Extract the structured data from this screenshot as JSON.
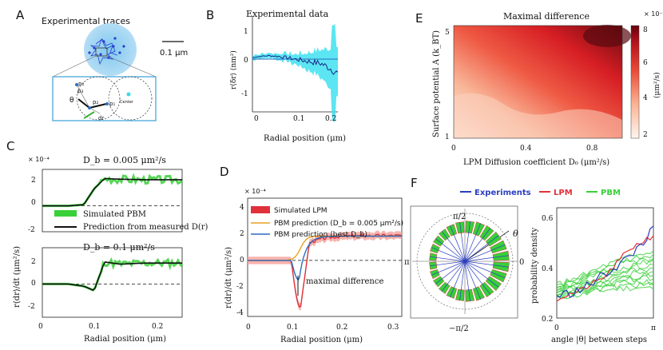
{
  "panel_letters": {
    "a": "A",
    "b": "B",
    "c": "C",
    "d": "D",
    "e": "E",
    "f": "F"
  },
  "panel_a": {
    "title": "Experimental traces",
    "scale_bar": "0.1 μm",
    "zoom_labels": [
      "p₀",
      "p₁",
      "p₂",
      "p₃",
      "θ",
      "dr",
      "Center"
    ]
  },
  "panel_b": {
    "title": "Experimental data",
    "xlabel": "Radial position (μm)",
    "ylabel": "r⟨δr⟩ (nm²)",
    "x_ticks": [
      "0",
      "0.1",
      "0.2"
    ],
    "y_ticks": [
      "1",
      "0",
      "-1"
    ]
  },
  "panel_c": {
    "exponent": "× 10⁻⁴",
    "top_title": "D_b = 0.005 μm²/s",
    "bottom_title": "D_b = 0.1 μm²/s",
    "legend": [
      "Simulated PBM",
      "Prediction from measured D(r)"
    ],
    "xlabel": "Radial position (μm)",
    "ylabel": "r⟨dr⟩/dt (μm²/s)",
    "x_ticks": [
      "0",
      "0.1",
      "0.2"
    ],
    "y_ticks_top": [
      "2",
      "0",
      "-2"
    ],
    "y_ticks_bottom": [
      "2",
      "0",
      "-2"
    ]
  },
  "panel_d": {
    "exponent": "× 10⁻⁴",
    "legend": [
      "Simulated LPM",
      "PBM prediction (D_b = 0.005 μm²/s)",
      "PBM prediction (best D_b)"
    ],
    "annotation": "maximal difference",
    "xlabel": "Radial position (μm)",
    "ylabel": "r⟨dr⟩/dt (μm²/s)",
    "x_ticks": [
      "0",
      "0.1",
      "0.2",
      "0.3"
    ],
    "y_ticks": [
      "4",
      "2",
      "0",
      "-2",
      "-4"
    ]
  },
  "panel_e": {
    "title": "Maximal difference",
    "exponent": "× 10⁻⁴",
    "xlabel": "LPM Diffusion coefficient D₀ (μm²/s)",
    "ylabel": "Surface potential A (k_BT)",
    "x_ticks": [
      "0",
      "0.4",
      "0.8"
    ],
    "y_ticks": [
      "5",
      "1"
    ],
    "colorbar_ticks": [
      "8",
      "6",
      "4",
      "2"
    ],
    "colorbar_label": "(μm²/s)"
  },
  "panel_f": {
    "legend": [
      "Experiments",
      "LPM",
      "PBM"
    ],
    "polar_labels": [
      "π/2",
      "−π/2",
      "π",
      "0",
      "θ"
    ],
    "xlabel": "angle |θ| between steps",
    "ylabel": "probability density",
    "x_ticks": [
      "0",
      "π"
    ],
    "y_ticks": [
      "0.6",
      "0.4",
      "0.2"
    ]
  },
  "colors": {
    "experiments": "#2b3fbf",
    "lpm": "#e0303a",
    "pbm": "#38d038",
    "cyan": "#40e0f0",
    "gold": "#e8a020",
    "blue": "#2a6fc0"
  },
  "chart_data": [
    {
      "type": "line",
      "title": "Experimental data",
      "xlabel": "Radial position (μm)",
      "ylabel": "r⟨δr⟩ (nm²)",
      "x": [
        0,
        0.02,
        0.04,
        0.06,
        0.08,
        0.1,
        0.12,
        0.14,
        0.16,
        0.18,
        0.2
      ],
      "series": [
        {
          "name": "mean",
          "values": [
            0.05,
            0.1,
            0.12,
            0.1,
            0.05,
            0.0,
            -0.05,
            -0.1,
            -0.15,
            -0.3,
            -0.5
          ]
        }
      ],
      "xlim": [
        0,
        0.2
      ],
      "ylim": [
        -1.5,
        1.5
      ]
    },
    {
      "type": "line",
      "title": "D_b = 0.005 μm²/s",
      "xlabel": "Radial position (μm)",
      "ylabel": "r⟨dr⟩/dt",
      "x": [
        0,
        0.05,
        0.08,
        0.1,
        0.12,
        0.15,
        0.2,
        0.27
      ],
      "series": [
        {
          "name": "Prediction from measured D(r)",
          "values": [
            0,
            0,
            0.1,
            1.5,
            2.4,
            2.35,
            2.3,
            2.3
          ]
        }
      ],
      "ylim": [
        -2,
        3
      ]
    },
    {
      "type": "line",
      "title": "D_b = 0.1 μm²/s",
      "xlabel": "Radial position (μm)",
      "ylabel": "r⟨dr⟩/dt",
      "x": [
        0,
        0.05,
        0.08,
        0.1,
        0.12,
        0.15,
        0.2,
        0.27
      ],
      "series": [
        {
          "name": "Prediction from measured D(r)",
          "values": [
            0,
            0,
            -0.2,
            -0.6,
            2.0,
            1.8,
            1.9,
            1.9
          ]
        }
      ],
      "ylim": [
        -2,
        3
      ]
    },
    {
      "type": "line",
      "xlabel": "Radial position (μm)",
      "ylabel": "r⟨dr⟩/dt (μm²/s)",
      "x": [
        0,
        0.05,
        0.08,
        0.1,
        0.12,
        0.15,
        0.2,
        0.3
      ],
      "series": [
        {
          "name": "Simulated LPM",
          "values": [
            0,
            0,
            -0.2,
            -3.8,
            1.2,
            1.8,
            1.9,
            2.0
          ]
        },
        {
          "name": "PBM prediction (D_b = 0.005 μm²/s)",
          "values": [
            0,
            0,
            0.05,
            0.8,
            1.8,
            1.9,
            1.95,
            2.0
          ]
        },
        {
          "name": "PBM prediction (best D_b)",
          "values": [
            0,
            0,
            -0.1,
            -1.5,
            1.5,
            1.85,
            1.95,
            2.0
          ]
        }
      ],
      "xlim": [
        0,
        0.3
      ],
      "ylim": [
        -4.5,
        5
      ]
    },
    {
      "type": "heatmap",
      "title": "Maximal difference",
      "xlabel": "LPM Diffusion coefficient D₀ (μm²/s)",
      "ylabel": "Surface potential A (k_BT)",
      "xlim": [
        0,
        1
      ],
      "ylim": [
        1,
        5
      ],
      "colorbar_range": [
        2,
        8
      ]
    },
    {
      "type": "line",
      "xlabel": "angle |θ| between steps",
      "ylabel": "probability density",
      "x": [
        0,
        0.785,
        1.571,
        2.356,
        3.142
      ],
      "series": [
        {
          "name": "Experiments",
          "values": [
            0.28,
            0.3,
            0.36,
            0.42,
            0.52
          ]
        },
        {
          "name": "LPM",
          "values": [
            0.27,
            0.3,
            0.35,
            0.45,
            0.5
          ]
        },
        {
          "name": "PBM",
          "values": [
            0.3,
            0.32,
            0.35,
            0.37,
            0.38
          ]
        }
      ],
      "xlim": [
        0,
        3.142
      ],
      "ylim": [
        0.2,
        0.6
      ]
    }
  ]
}
